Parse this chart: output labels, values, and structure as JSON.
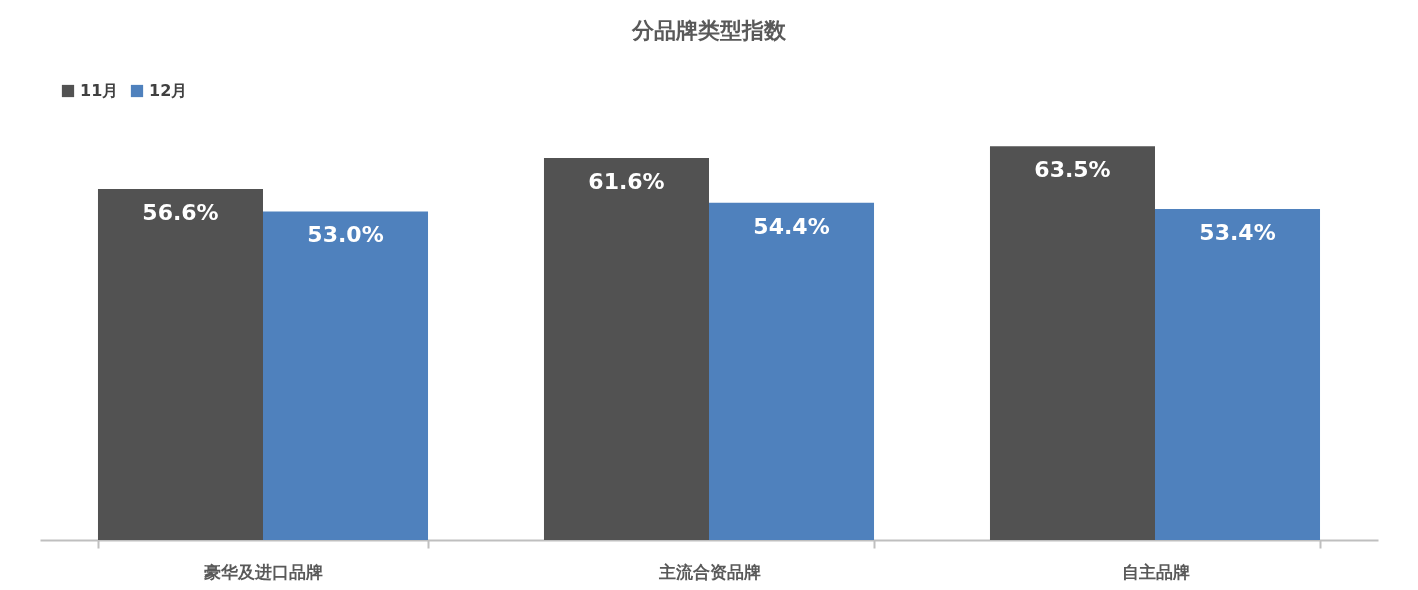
{
  "chart_data": {
    "type": "bar",
    "title": "分品牌类型指数",
    "categories": [
      "豪华及进口品牌",
      "主流合资品牌",
      "自主品牌"
    ],
    "series": [
      {
        "name": "11月",
        "color": "#525252",
        "values": [
          56.6,
          61.6,
          63.5
        ],
        "value_labels": [
          "56.6%",
          "61.6%",
          "63.5%"
        ]
      },
      {
        "name": "12月",
        "color": "#4f81bd",
        "values": [
          53.0,
          54.4,
          53.4
        ],
        "value_labels": [
          "53.0%",
          "54.4%",
          "53.4%"
        ]
      }
    ],
    "legend": "top",
    "grid": false,
    "tick_labels": "x"
  }
}
